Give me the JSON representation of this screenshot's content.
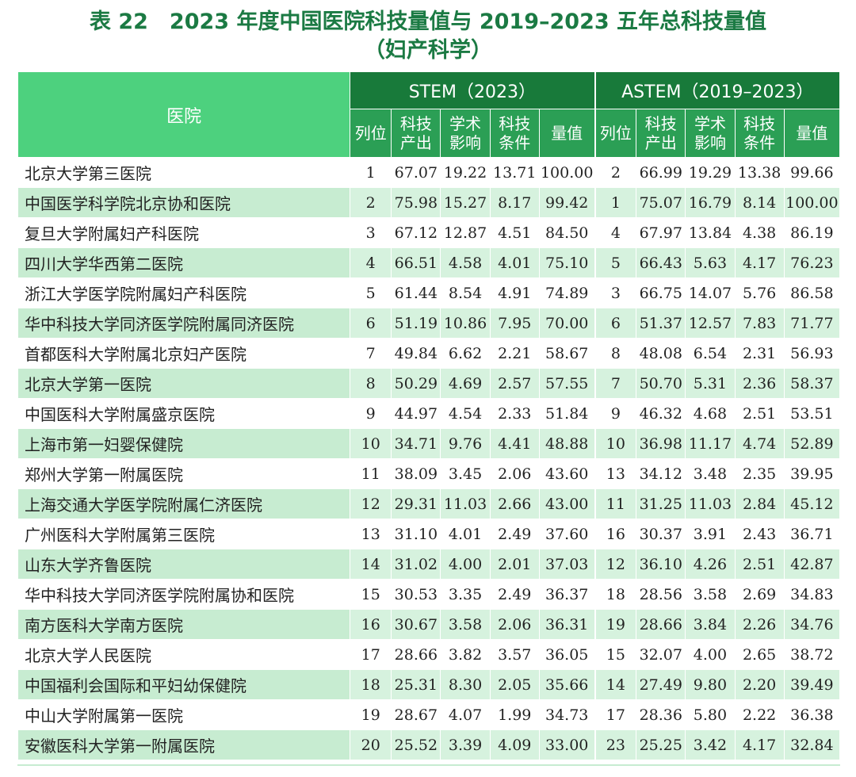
{
  "title": {
    "line1": "表 22　2023 年度中国医院科技量值与 2019–2023 五年总科技量值",
    "line2": "（妇产科学）"
  },
  "header": {
    "hospital": "医院",
    "group1": "STEM（2023）",
    "group2": "ASTEM（2019–2023）",
    "sub": [
      "列位",
      "科技\n产出",
      "学术\n影响",
      "科技\n条件",
      "量值"
    ]
  },
  "rows": [
    {
      "name": "北京大学第三医院",
      "s": [
        "1",
        "67.07",
        "19.22",
        "13.71",
        "100.00"
      ],
      "a": [
        "2",
        "66.99",
        "19.29",
        "13.38",
        "99.66"
      ]
    },
    {
      "name": "中国医学科学院北京协和医院",
      "s": [
        "2",
        "75.98",
        "15.27",
        "8.17",
        "99.42"
      ],
      "a": [
        "1",
        "75.07",
        "16.79",
        "8.14",
        "100.00"
      ]
    },
    {
      "name": "复旦大学附属妇产科医院",
      "s": [
        "3",
        "67.12",
        "12.87",
        "4.51",
        "84.50"
      ],
      "a": [
        "4",
        "67.97",
        "13.84",
        "4.38",
        "86.19"
      ]
    },
    {
      "name": "四川大学华西第二医院",
      "s": [
        "4",
        "66.51",
        "4.58",
        "4.01",
        "75.10"
      ],
      "a": [
        "5",
        "66.43",
        "5.63",
        "4.17",
        "76.23"
      ]
    },
    {
      "name": "浙江大学医学院附属妇产科医院",
      "s": [
        "5",
        "61.44",
        "8.54",
        "4.91",
        "74.89"
      ],
      "a": [
        "3",
        "66.75",
        "14.07",
        "5.76",
        "86.58"
      ]
    },
    {
      "name": "华中科技大学同济医学院附属同济医院",
      "s": [
        "6",
        "51.19",
        "10.86",
        "7.95",
        "70.00"
      ],
      "a": [
        "6",
        "51.37",
        "12.57",
        "7.83",
        "71.77"
      ]
    },
    {
      "name": "首都医科大学附属北京妇产医院",
      "s": [
        "7",
        "49.84",
        "6.62",
        "2.21",
        "58.67"
      ],
      "a": [
        "8",
        "48.08",
        "6.54",
        "2.31",
        "56.93"
      ]
    },
    {
      "name": "北京大学第一医院",
      "s": [
        "8",
        "50.29",
        "4.69",
        "2.57",
        "57.55"
      ],
      "a": [
        "7",
        "50.70",
        "5.31",
        "2.36",
        "58.37"
      ]
    },
    {
      "name": "中国医科大学附属盛京医院",
      "s": [
        "9",
        "44.97",
        "4.54",
        "2.33",
        "51.84"
      ],
      "a": [
        "9",
        "46.32",
        "4.68",
        "2.51",
        "53.51"
      ]
    },
    {
      "name": "上海市第一妇婴保健院",
      "s": [
        "10",
        "34.71",
        "9.76",
        "4.41",
        "48.88"
      ],
      "a": [
        "10",
        "36.98",
        "11.17",
        "4.74",
        "52.89"
      ]
    },
    {
      "name": "郑州大学第一附属医院",
      "s": [
        "11",
        "38.09",
        "3.45",
        "2.06",
        "43.60"
      ],
      "a": [
        "13",
        "34.12",
        "3.48",
        "2.35",
        "39.95"
      ]
    },
    {
      "name": "上海交通大学医学院附属仁济医院",
      "s": [
        "12",
        "29.31",
        "11.03",
        "2.66",
        "43.00"
      ],
      "a": [
        "11",
        "31.25",
        "11.03",
        "2.84",
        "45.12"
      ]
    },
    {
      "name": "广州医科大学附属第三医院",
      "s": [
        "13",
        "31.10",
        "4.01",
        "2.49",
        "37.60"
      ],
      "a": [
        "16",
        "30.37",
        "3.91",
        "2.43",
        "36.71"
      ]
    },
    {
      "name": "山东大学齐鲁医院",
      "s": [
        "14",
        "31.02",
        "4.00",
        "2.01",
        "37.03"
      ],
      "a": [
        "12",
        "36.10",
        "4.26",
        "2.51",
        "42.87"
      ]
    },
    {
      "name": "华中科技大学同济医学院附属协和医院",
      "s": [
        "15",
        "30.53",
        "3.35",
        "2.49",
        "36.37"
      ],
      "a": [
        "18",
        "28.56",
        "3.58",
        "2.69",
        "34.83"
      ]
    },
    {
      "name": "南方医科大学南方医院",
      "s": [
        "16",
        "30.67",
        "3.58",
        "2.06",
        "36.31"
      ],
      "a": [
        "19",
        "28.66",
        "3.84",
        "2.26",
        "34.76"
      ]
    },
    {
      "name": "北京大学人民医院",
      "s": [
        "17",
        "28.66",
        "3.82",
        "3.57",
        "36.05"
      ],
      "a": [
        "15",
        "32.07",
        "4.00",
        "2.65",
        "38.72"
      ]
    },
    {
      "name": "中国福利会国际和平妇幼保健院",
      "s": [
        "18",
        "25.31",
        "8.30",
        "2.05",
        "35.66"
      ],
      "a": [
        "14",
        "27.49",
        "9.80",
        "2.20",
        "39.49"
      ]
    },
    {
      "name": "中山大学附属第一医院",
      "s": [
        "19",
        "28.67",
        "4.07",
        "1.99",
        "34.73"
      ],
      "a": [
        "17",
        "28.36",
        "5.80",
        "2.22",
        "36.38"
      ]
    },
    {
      "name": "安徽医科大学第一附属医院",
      "s": [
        "20",
        "25.52",
        "3.39",
        "4.09",
        "33.00"
      ],
      "a": [
        "23",
        "25.25",
        "3.42",
        "4.17",
        "32.84"
      ]
    }
  ]
}
